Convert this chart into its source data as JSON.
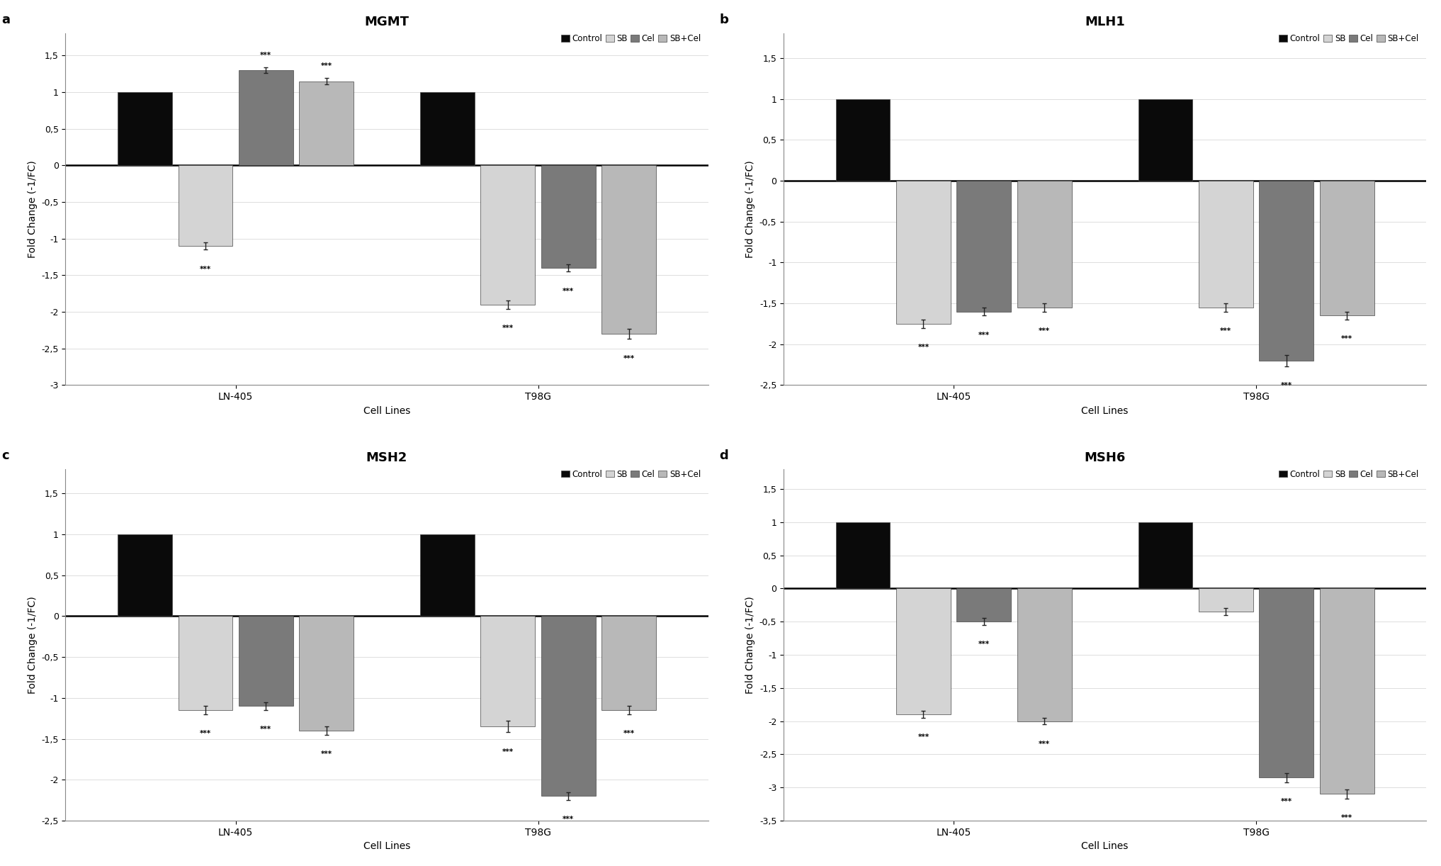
{
  "charts": [
    {
      "title": "MGMT",
      "label": "a",
      "ylim": [
        -3,
        1.8
      ],
      "yticks": [
        -3,
        -2.5,
        -2,
        -1.5,
        -1,
        -0.5,
        0,
        0.5,
        1,
        1.5
      ],
      "ytick_labels": [
        "-3",
        "-2,5",
        "-2",
        "-1,5",
        "-1",
        "-0,5",
        "0",
        "0,5",
        "1",
        "1,5"
      ],
      "groups": [
        "LN-405",
        "T98G"
      ],
      "values": [
        [
          1.0,
          -1.1,
          1.3,
          1.15
        ],
        [
          1.0,
          -1.9,
          -1.4,
          -2.3
        ]
      ],
      "errors": [
        [
          0.04,
          0.05,
          0.04,
          0.04
        ],
        [
          0.04,
          0.06,
          0.05,
          0.07
        ]
      ],
      "sig": [
        [
          false,
          true,
          true,
          true
        ],
        [
          false,
          true,
          true,
          true
        ]
      ]
    },
    {
      "title": "MLH1",
      "label": "b",
      "ylim": [
        -2.5,
        1.8
      ],
      "yticks": [
        -2.5,
        -2,
        -1.5,
        -1,
        -0.5,
        0,
        0.5,
        1,
        1.5
      ],
      "ytick_labels": [
        "-2,5",
        "-2",
        "-1,5",
        "-1",
        "-0,5",
        "0",
        "0,5",
        "1",
        "1,5"
      ],
      "groups": [
        "LN-405",
        "T98G"
      ],
      "values": [
        [
          1.0,
          -1.75,
          -1.6,
          -1.55
        ],
        [
          1.0,
          -1.55,
          -2.2,
          -1.65
        ]
      ],
      "errors": [
        [
          0.04,
          0.05,
          0.05,
          0.05
        ],
        [
          0.04,
          0.05,
          0.07,
          0.05
        ]
      ],
      "sig": [
        [
          false,
          true,
          true,
          true
        ],
        [
          false,
          true,
          true,
          true
        ]
      ]
    },
    {
      "title": "MSH2",
      "label": "c",
      "ylim": [
        -2.5,
        1.8
      ],
      "yticks": [
        -2.5,
        -2,
        -1.5,
        -1,
        -0.5,
        0,
        0.5,
        1,
        1.5
      ],
      "ytick_labels": [
        "-2,5",
        "-2",
        "-1,5",
        "-1",
        "-0,5",
        "0",
        "0,5",
        "1",
        "1,5"
      ],
      "groups": [
        "LN-405",
        "T98G"
      ],
      "values": [
        [
          1.0,
          -1.15,
          -1.1,
          -1.4
        ],
        [
          1.0,
          -1.35,
          -2.2,
          -1.15
        ]
      ],
      "errors": [
        [
          0.04,
          0.05,
          0.05,
          0.05
        ],
        [
          0.04,
          0.07,
          0.05,
          0.05
        ]
      ],
      "sig": [
        [
          false,
          true,
          true,
          true
        ],
        [
          false,
          true,
          true,
          true
        ]
      ]
    },
    {
      "title": "MSH6",
      "label": "d",
      "ylim": [
        -3.5,
        1.8
      ],
      "yticks": [
        -3.5,
        -3,
        -2.5,
        -2,
        -1.5,
        -1,
        -0.5,
        0,
        0.5,
        1,
        1.5
      ],
      "ytick_labels": [
        "-3,5",
        "-3",
        "-2,5",
        "-2",
        "-1,5",
        "-1",
        "-0,5",
        "0",
        "0,5",
        "1",
        "1,5"
      ],
      "groups": [
        "LN-405",
        "T98G"
      ],
      "values": [
        [
          1.0,
          -1.9,
          -0.5,
          -2.0
        ],
        [
          1.0,
          -0.35,
          -2.85,
          -3.1
        ]
      ],
      "errors": [
        [
          0.04,
          0.05,
          0.05,
          0.05
        ],
        [
          0.04,
          0.05,
          0.07,
          0.07
        ]
      ],
      "sig": [
        [
          false,
          true,
          true,
          true
        ],
        [
          false,
          false,
          true,
          true
        ]
      ]
    }
  ],
  "bar_colors": [
    "#0a0a0a",
    "#d4d4d4",
    "#7a7a7a",
    "#b8b8b8"
  ],
  "legend_labels": [
    "Control",
    "SB",
    "Cel",
    "SB+Cel"
  ],
  "xlabel": "Cell Lines",
  "ylabel": "Fold Change (-1/FC)",
  "bar_width": 0.16,
  "sig_text": "***",
  "background_color": "#ffffff",
  "group_centers": [
    0.3,
    1.1
  ]
}
